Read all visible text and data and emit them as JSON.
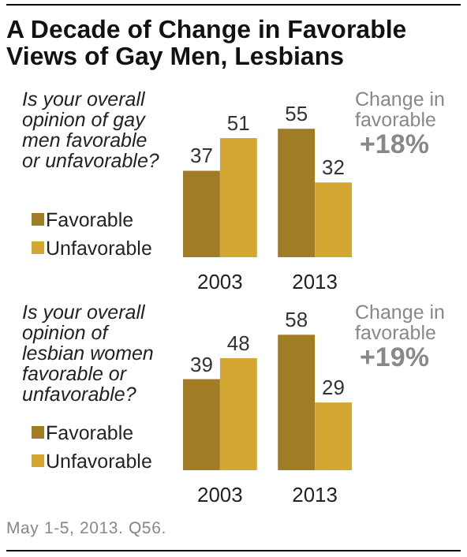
{
  "chart_data": [
    {
      "type": "bar",
      "title": "A Decade of Change in Favorable Views of Gay Men, Lesbians",
      "subtitle": "Is your overall opinion of gay men favorable or unfavorable?",
      "categories": [
        "2003",
        "2013"
      ],
      "series": [
        {
          "name": "Favorable",
          "color": "#a07d25",
          "values": [
            37,
            55
          ]
        },
        {
          "name": "Unfavorable",
          "color": "#d4a732",
          "values": [
            51,
            32
          ]
        }
      ],
      "data_labels": true,
      "legend": "bottom left",
      "annotations": [
        "Change in favorable",
        "+18%"
      ]
    },
    {
      "type": "bar",
      "subtitle": "Is your overall opinion of lesbian women favorable or unfavorable?",
      "categories": [
        "2003",
        "2013"
      ],
      "series": [
        {
          "name": "Favorable",
          "color": "#a07d25",
          "values": [
            39,
            58
          ]
        },
        {
          "name": "Unfavorable",
          "color": "#d4a732",
          "values": [
            48,
            29
          ]
        }
      ],
      "data_labels": true,
      "legend": "bottom left",
      "annotations": [
        "Change in favorable",
        "+19%",
        "May 1-5, 2013. Q56."
      ]
    }
  ]
}
